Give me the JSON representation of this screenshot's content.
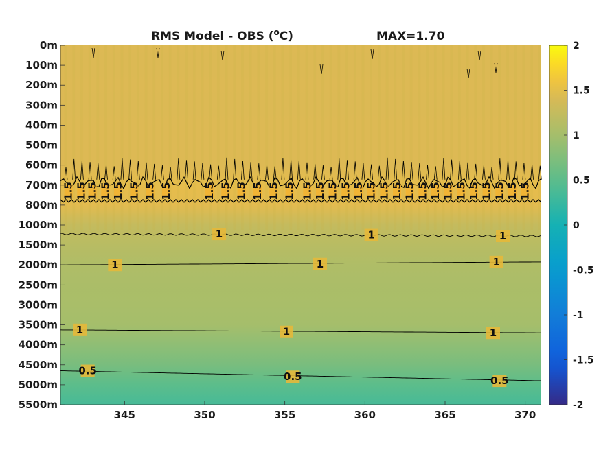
{
  "chart_data": {
    "type": "heatmap",
    "title": "RMS Model - OBS (",
    "title_unit_sup": "o",
    "title_unit": "C)",
    "max_label": "MAX=1.70",
    "x": {
      "ticks": [
        345,
        350,
        355,
        360,
        365,
        370
      ],
      "range": [
        341,
        371
      ]
    },
    "y": {
      "ticks": [
        "0m",
        "100m",
        "200m",
        "300m",
        "400m",
        "500m",
        "600m",
        "700m",
        "800m",
        "1000m",
        "1500m",
        "2000m",
        "2500m",
        "3000m",
        "3500m",
        "4000m",
        "4500m",
        "5000m",
        "5500m"
      ]
    },
    "colorbar": {
      "ticks": [
        "2",
        "1.5",
        "1",
        "0.5",
        "0",
        "-0.5",
        "-1",
        "-1.5",
        "-2"
      ],
      "range": [
        -2,
        2
      ]
    },
    "depth_profile": [
      1.45,
      1.44,
      1.45,
      1.44,
      1.45,
      1.45,
      1.45,
      1.52,
      1.5,
      1.25,
      1.15,
      1.08,
      1.05,
      1.03,
      1.0,
      0.85,
      0.7,
      0.5,
      0.35
    ],
    "contours": [
      {
        "label": "1.5",
        "level": 1.5
      },
      {
        "label": "1",
        "level": 1.0
      },
      {
        "label": "0.5",
        "level": 0.5
      }
    ],
    "contour_labels": [
      {
        "text": "1.5",
        "x": 341.5,
        "depth_index": 7.3
      },
      {
        "text": "1.5",
        "x": 342.3,
        "depth_index": 7.3
      },
      {
        "text": "1.5",
        "x": 343.0,
        "depth_index": 7.3
      },
      {
        "text": "1.5",
        "x": 343.8,
        "depth_index": 7.3
      },
      {
        "text": "1.5",
        "x": 344.6,
        "depth_index": 7.3
      },
      {
        "text": "1.5",
        "x": 345.6,
        "depth_index": 7.3
      },
      {
        "text": "1.5",
        "x": 346.6,
        "depth_index": 7.3
      },
      {
        "text": "1.5",
        "x": 347.6,
        "depth_index": 7.3
      },
      {
        "text": "1.5",
        "x": 350.3,
        "depth_index": 7.3
      },
      {
        "text": "1.5",
        "x": 351.3,
        "depth_index": 7.3
      },
      {
        "text": "1.5",
        "x": 352.3,
        "depth_index": 7.3
      },
      {
        "text": "1.5",
        "x": 353.3,
        "depth_index": 7.3
      },
      {
        "text": "1.5",
        "x": 354.3,
        "depth_index": 7.3
      },
      {
        "text": "1.5",
        "x": 355.3,
        "depth_index": 7.3
      },
      {
        "text": "1.5",
        "x": 356.4,
        "depth_index": 7.3
      },
      {
        "text": "1.5",
        "x": 357.2,
        "depth_index": 7.3
      },
      {
        "text": "1.5",
        "x": 358.0,
        "depth_index": 7.3
      },
      {
        "text": "1.5",
        "x": 358.8,
        "depth_index": 7.3
      },
      {
        "text": "1.5",
        "x": 359.6,
        "depth_index": 7.3
      },
      {
        "text": "1.5",
        "x": 360.4,
        "depth_index": 7.3
      },
      {
        "text": "1.5",
        "x": 361.2,
        "depth_index": 7.3
      },
      {
        "text": "1.5",
        "x": 362.0,
        "depth_index": 7.3
      },
      {
        "text": "1.5",
        "x": 362.8,
        "depth_index": 7.3
      },
      {
        "text": "1.5",
        "x": 363.6,
        "depth_index": 7.3
      },
      {
        "text": "1.5",
        "x": 364.4,
        "depth_index": 7.3
      },
      {
        "text": "1.5",
        "x": 365.2,
        "depth_index": 7.3
      },
      {
        "text": "1.5",
        "x": 366.0,
        "depth_index": 7.3
      },
      {
        "text": "1.5",
        "x": 366.8,
        "depth_index": 7.3
      },
      {
        "text": "1.5",
        "x": 367.6,
        "depth_index": 7.3
      },
      {
        "text": "1.5",
        "x": 368.4,
        "depth_index": 7.3
      },
      {
        "text": "1.5",
        "x": 369.2,
        "depth_index": 7.3
      },
      {
        "text": "1.5",
        "x": 370.0,
        "depth_index": 7.3
      },
      {
        "text": "1",
        "x": 350.9,
        "depth_index": 9.45
      },
      {
        "text": "1",
        "x": 360.4,
        "depth_index": 9.5
      },
      {
        "text": "1",
        "x": 368.6,
        "depth_index": 9.55
      },
      {
        "text": "1",
        "x": 344.4,
        "depth_index": 11.0
      },
      {
        "text": "1",
        "x": 357.2,
        "depth_index": 10.95
      },
      {
        "text": "1",
        "x": 368.2,
        "depth_index": 10.85
      },
      {
        "text": "1",
        "x": 342.2,
        "depth_index": 14.25
      },
      {
        "text": "1",
        "x": 355.1,
        "depth_index": 14.35
      },
      {
        "text": "1",
        "x": 368.0,
        "depth_index": 14.4
      },
      {
        "text": "0.5",
        "x": 342.7,
        "depth_index": 16.3
      },
      {
        "text": "0.5",
        "x": 355.5,
        "depth_index": 16.6
      },
      {
        "text": "0.5",
        "x": 368.4,
        "depth_index": 16.8
      }
    ]
  }
}
